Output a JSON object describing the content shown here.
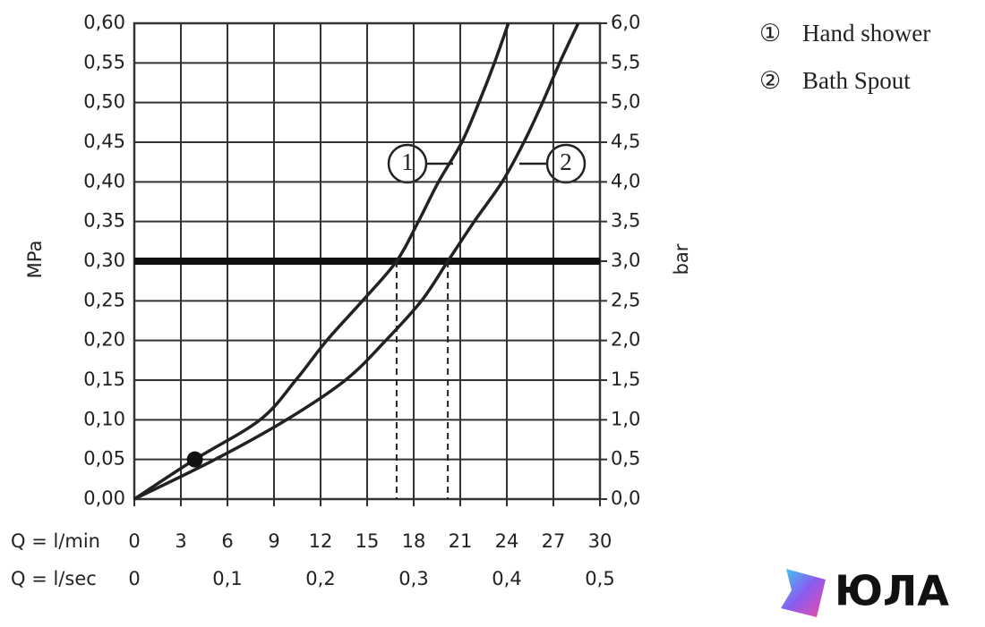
{
  "chart_data": {
    "type": "line",
    "ylabel": "MPa",
    "y2label": "bar",
    "xlabel": "Q = l/min",
    "x2label": "Q = l/sec",
    "xlim": [
      0,
      30
    ],
    "xticks": [
      0,
      3,
      6,
      9,
      12,
      15,
      18,
      21,
      24,
      27,
      30
    ],
    "x2lim": [
      0,
      0.5
    ],
    "x2ticks": [
      0,
      {
        "value": 0.1,
        "label": "0,1"
      },
      {
        "value": 0.2,
        "label": "0,2"
      },
      {
        "value": 0.3,
        "label": "0,3"
      },
      {
        "value": 0.4,
        "label": "0,4"
      },
      {
        "value": 0.5,
        "label": "0,5"
      }
    ],
    "ylim": [
      0,
      0.6
    ],
    "yticks": [
      {
        "value": 0,
        "label": "0,00"
      },
      {
        "value": 0.05,
        "label": "0,05"
      },
      {
        "value": 0.1,
        "label": "0,10"
      },
      {
        "value": 0.15,
        "label": "0,15"
      },
      {
        "value": 0.2,
        "label": "0,20"
      },
      {
        "value": 0.25,
        "label": "0,25"
      },
      {
        "value": 0.3,
        "label": "0,30"
      },
      {
        "value": 0.35,
        "label": "0,35"
      },
      {
        "value": 0.4,
        "label": "0,40"
      },
      {
        "value": 0.45,
        "label": "0,45"
      },
      {
        "value": 0.5,
        "label": "0,50"
      },
      {
        "value": 0.55,
        "label": "0,55"
      },
      {
        "value": 0.6,
        "label": "0,60"
      }
    ],
    "y2lim": [
      0,
      6
    ],
    "y2ticks": [
      {
        "value": 0,
        "label": "0,0"
      },
      {
        "value": 0.5,
        "label": "0,5"
      },
      {
        "value": 1,
        "label": "1,0"
      },
      {
        "value": 1.5,
        "label": "1,5"
      },
      {
        "value": 2,
        "label": "2,0"
      },
      {
        "value": 2.5,
        "label": "2,5"
      },
      {
        "value": 3,
        "label": "3,0"
      },
      {
        "value": 3.5,
        "label": "3,5"
      },
      {
        "value": 4,
        "label": "4,0"
      },
      {
        "value": 4.5,
        "label": "4,5"
      },
      {
        "value": 5,
        "label": "5,0"
      },
      {
        "value": 5.5,
        "label": "5,5"
      },
      {
        "value": 6,
        "label": "6,0"
      }
    ],
    "grid": true,
    "series": [
      {
        "name": "Hand shower",
        "symbol": "①",
        "label": "1",
        "color": "#222",
        "x": [
          0,
          3.9,
          8.1,
          10.4,
          12.4,
          14.7,
          16.9,
          18.3,
          19.6,
          21.1,
          22.2,
          23.2,
          24.1
        ],
        "values": [
          0,
          0.05,
          0.1,
          0.15,
          0.2,
          0.25,
          0.3,
          0.35,
          0.4,
          0.45,
          0.5,
          0.55,
          0.6
        ]
      },
      {
        "name": "Bath Spout",
        "symbol": "②",
        "label": "2",
        "color": "#222",
        "x": [
          0,
          5.2,
          9.8,
          13.6,
          16.2,
          18.5,
          20.2,
          21.9,
          23.7,
          25.1,
          26.3,
          27.4,
          28.6
        ],
        "values": [
          0,
          0.05,
          0.1,
          0.15,
          0.2,
          0.25,
          0.3,
          0.35,
          0.4,
          0.45,
          0.5,
          0.55,
          0.6
        ]
      }
    ],
    "reference_line": {
      "y": 0.3
    },
    "drop_lines": [
      {
        "x": 16.9,
        "y": 0.3
      },
      {
        "x": 20.2,
        "y": 0.3
      }
    ],
    "point": {
      "x": 3.9,
      "y": 0.05
    },
    "watermark": "ЮЛА"
  }
}
